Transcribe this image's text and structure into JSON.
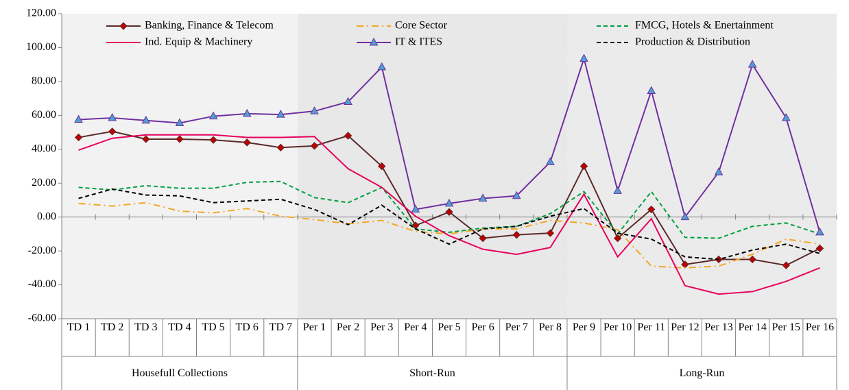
{
  "chart_data": {
    "type": "line",
    "categories": [
      "TD 1",
      "TD 2",
      "TD 3",
      "TD 4",
      "TD 5",
      "TD 6",
      "TD 7",
      "Per 1",
      "Per 2",
      "Per 3",
      "Per 4",
      "Per 5",
      "Per 6",
      "Per 7",
      "Per 8",
      "Per 9",
      "Per 10",
      "Per 11",
      "Per 12",
      "Per 13",
      "Per 14",
      "Per 15",
      "Per 16"
    ],
    "groups": [
      {
        "name": "Housefull Collections",
        "count": 7,
        "background": "#f2f2f2"
      },
      {
        "name": "Short-Run",
        "count": 8,
        "background": "#e8e8e8"
      },
      {
        "name": "Long-Run",
        "count": 8,
        "background": "texture"
      }
    ],
    "series": [
      {
        "name": "Banking, Finance & Telecom",
        "color": "#5c2a2a",
        "marker": "diamond",
        "marker_color": "#c00000",
        "dash": "solid",
        "values": [
          47,
          50.5,
          46,
          46,
          45.5,
          44,
          41,
          42,
          48,
          30,
          -5,
          3,
          -12.5,
          -10.5,
          -9.5,
          30,
          -12.5,
          4.5,
          -28,
          -25,
          -25,
          -28.5,
          -18.5
        ]
      },
      {
        "name": "Core Sector",
        "color": "#f5a623",
        "dash": "dashdot",
        "values": [
          8,
          6.5,
          8.5,
          3.5,
          2.5,
          5,
          0.5,
          -1.5,
          -4,
          -2,
          -8.5,
          -10,
          -7,
          -7,
          -2,
          -3.5,
          -7.5,
          -29,
          -30,
          -29,
          -22,
          -13,
          -16
        ]
      },
      {
        "name": "FMCG, Hotels & Enertainment",
        "color": "#00a040",
        "dash": "dashed",
        "values": [
          17.5,
          16,
          18.5,
          17,
          17,
          20.5,
          21,
          11.5,
          8.5,
          17.5,
          -7,
          -9,
          -6.5,
          -5.5,
          2,
          15,
          -10,
          15,
          -12,
          -12.5,
          -5.5,
          -3.5,
          -10
        ]
      },
      {
        "name": "Ind. Equip & Machinery",
        "color": "#e6005c",
        "dash": "solid",
        "values": [
          39.5,
          46.5,
          48.5,
          48.5,
          48.5,
          47,
          47,
          47.5,
          28.5,
          17.5,
          0.5,
          -11,
          -19,
          -22,
          -18,
          13.5,
          -23.5,
          -1,
          -40.5,
          -45.5,
          -44,
          -38,
          -30
        ]
      },
      {
        "name": "IT & ITES",
        "color": "#7030a0",
        "marker": "triangle",
        "marker_color": "#4f9fd0",
        "dash": "solid",
        "values": [
          57.5,
          58.5,
          57,
          55.5,
          59.5,
          61,
          60.5,
          62.5,
          68,
          88.5,
          4.5,
          8,
          11,
          12.5,
          32.5,
          93.5,
          15.5,
          74.5,
          0,
          26.5,
          90,
          58.5,
          -9
        ]
      },
      {
        "name": "Production & Distribution",
        "color": "#000000",
        "dash": "dashed",
        "values": [
          11,
          16.5,
          13,
          12.5,
          8.5,
          9.5,
          10.5,
          4.5,
          -4.5,
          7,
          -7,
          -16,
          -7,
          -5.5,
          0.5,
          5,
          -9.5,
          -13,
          -23.5,
          -25,
          -19.5,
          -16,
          -21.5
        ]
      }
    ],
    "ylim": [
      -60,
      120
    ],
    "yticks": [
      {
        "value": -60,
        "label": "-60.00"
      },
      {
        "value": -40,
        "label": "-40.00"
      },
      {
        "value": -20,
        "label": "-20.00"
      },
      {
        "value": 0,
        "label": "0.00"
      },
      {
        "value": 20,
        "label": "20.00"
      },
      {
        "value": 40,
        "label": "40.00"
      },
      {
        "value": 60,
        "label": "60.00"
      },
      {
        "value": 80,
        "label": "80.00"
      },
      {
        "value": 100,
        "label": "100.00"
      },
      {
        "value": 120,
        "label": "120.00"
      }
    ],
    "legend": "top"
  }
}
